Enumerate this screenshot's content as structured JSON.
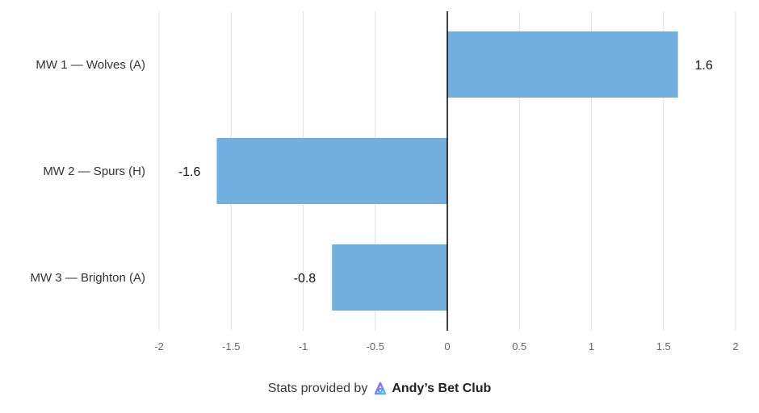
{
  "chart_data": {
    "type": "bar",
    "orientation": "horizontal",
    "categories": [
      "MW 1 — Wolves (A)",
      "MW 2 — Spurs (H)",
      "MW 3 — Brighton (A)"
    ],
    "values": [
      1.6,
      -1.6,
      -0.8
    ],
    "value_labels": [
      "1.6",
      "-1.6",
      "-0.8"
    ],
    "xlim": [
      -2,
      2
    ],
    "x_ticks": [
      -2,
      -1.5,
      -1,
      -0.5,
      0,
      0.5,
      1,
      1.5,
      2
    ],
    "x_tick_labels": [
      "-2",
      "-1.5",
      "-1",
      "-0.5",
      "0",
      "0.5",
      "1",
      "1.5",
      "2"
    ],
    "grid": "vertical",
    "bar_color": "#72afde",
    "zero_line_color": "#000000"
  },
  "footer": {
    "prefix": "Stats provided by",
    "brand": "Andy’s Bet Club",
    "logo_icon": "andys-bet-club-logo-icon"
  }
}
